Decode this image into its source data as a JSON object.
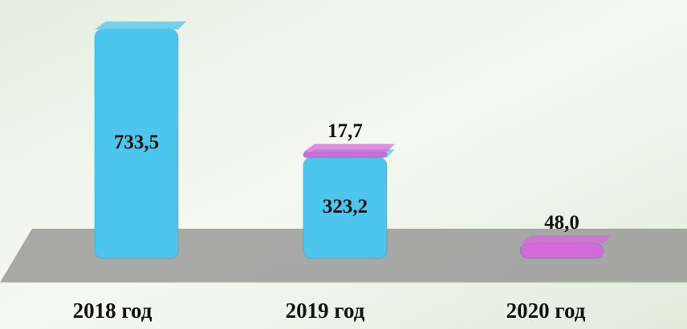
{
  "chart_data": {
    "type": "stacked-bar-3d",
    "categories": [
      "2018 год",
      "2019 год",
      "2020 год"
    ],
    "series": [
      {
        "color": "#4cc6ec",
        "values": [
          733.5,
          323.2,
          null
        ],
        "value_labels": [
          "733,5",
          "323,2",
          null
        ]
      },
      {
        "color": "#d46ad9",
        "values": [
          null,
          17.7,
          48.0
        ],
        "value_labels": [
          null,
          "17,7",
          "48,0"
        ]
      }
    ]
  }
}
